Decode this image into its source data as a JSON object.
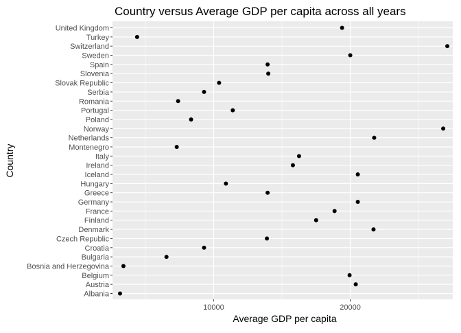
{
  "chart_data": {
    "type": "scatter",
    "title": "Country versus Average GDP per capita across all years",
    "xlabel": "Average GDP per capita",
    "ylabel": "Country",
    "xlim": [
      2600,
      27500
    ],
    "xticks": [
      10000,
      20000
    ],
    "x_tick_labels": [
      "10000",
      "20000"
    ],
    "grid": true,
    "panel_background": "#EBEBEB",
    "point_color": "#000000",
    "categories": [
      "Albania",
      "Austria",
      "Belgium",
      "Bosnia and Herzegovina",
      "Bulgaria",
      "Croatia",
      "Czech Republic",
      "Denmark",
      "Finland",
      "France",
      "Germany",
      "Greece",
      "Hungary",
      "Iceland",
      "Ireland",
      "Italy",
      "Montenegro",
      "Netherlands",
      "Norway",
      "Poland",
      "Portugal",
      "Romania",
      "Serbia",
      "Slovak Republic",
      "Slovenia",
      "Spain",
      "Sweden",
      "Switzerland",
      "Turkey",
      "United Kingdom"
    ],
    "values": [
      3150,
      20400,
      19950,
      3400,
      6550,
      9300,
      13900,
      21700,
      17500,
      18850,
      20550,
      13950,
      10900,
      20550,
      15800,
      16250,
      7300,
      21750,
      26800,
      8350,
      11400,
      7400,
      9300,
      10400,
      14000,
      13950,
      20000,
      27100,
      4400,
      19400
    ]
  }
}
